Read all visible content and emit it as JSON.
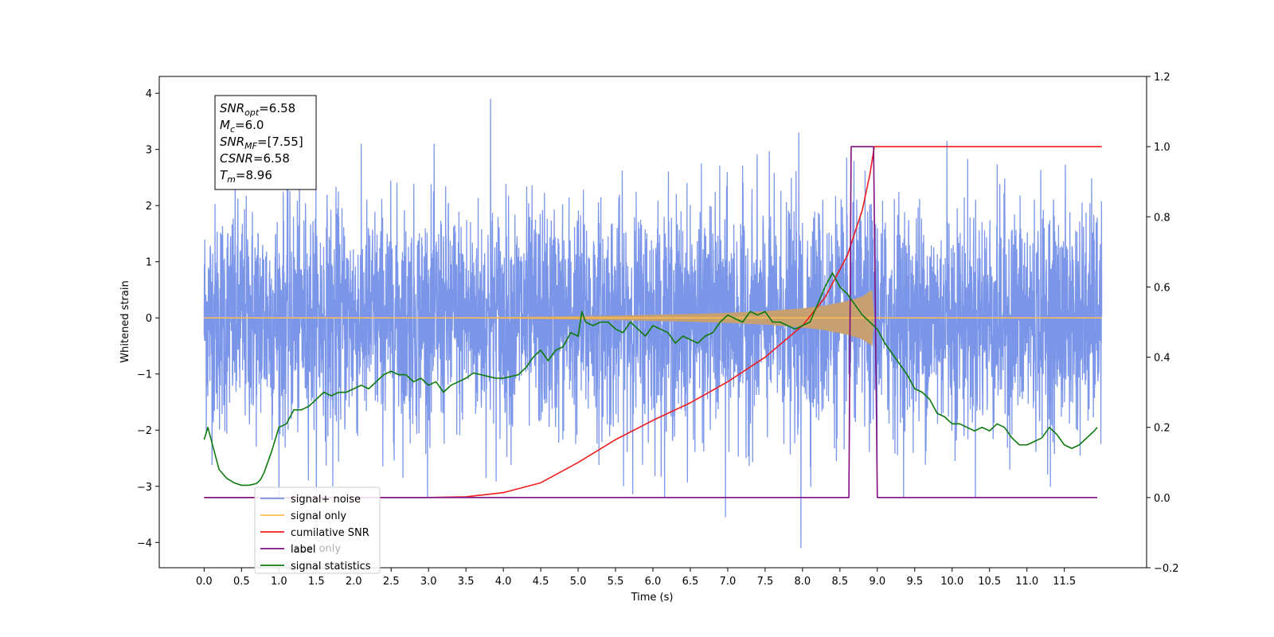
{
  "chart_data": {
    "type": "line",
    "xlabel": "Time (s)",
    "ylabel": "Whitened strain",
    "xlim": [
      -0.6,
      12.6
    ],
    "ylim": [
      -4.45,
      4.3
    ],
    "y2lim": [
      -0.2,
      1.2
    ],
    "x_ticks": [
      0.0,
      0.5,
      1.0,
      1.5,
      2.0,
      2.5,
      3.0,
      3.5,
      4.0,
      4.5,
      5.0,
      5.5,
      6.0,
      6.5,
      7.0,
      7.5,
      8.0,
      8.5,
      9.0,
      9.5,
      10.0,
      10.5,
      11.0,
      11.5
    ],
    "x_tick_labels": [
      "0.0",
      "0.5",
      "1.0",
      "1.5",
      "2.0",
      "2.5",
      "3.0",
      "3.5",
      "4.0",
      "4.5",
      "5.0",
      "5.5",
      "6.0",
      "6.5",
      "7.0",
      "7.5",
      "8.0",
      "8.5",
      "9.0",
      "9.5",
      "10.0",
      "10.5",
      "11.0",
      "11.5"
    ],
    "y_ticks": [
      -4,
      -3,
      -2,
      -1,
      0,
      1,
      2,
      3,
      4
    ],
    "y_tick_labels": [
      "−4",
      "−3",
      "−2",
      "−1",
      "0",
      "1",
      "2",
      "3",
      "4"
    ],
    "y2_ticks": [
      -0.2,
      0.0,
      0.2,
      0.4,
      0.6,
      0.8,
      1.0,
      1.2
    ],
    "y2_tick_labels": [
      "−0.2",
      "0.0",
      "0.2",
      "0.4",
      "0.6",
      "0.8",
      "1.0",
      "1.2"
    ],
    "grid": false,
    "legend_position": "lower-left",
    "noise": {
      "t_start": 0.0,
      "t_end": 12.0,
      "amplitude_std": 1.0,
      "max_peak": 3.9,
      "min_peak": -4.1,
      "notable_peaks": [
        {
          "x": 3.83,
          "y": 3.9
        },
        {
          "x": 7.95,
          "y": 3.3
        },
        {
          "x": 9.93,
          "y": 3.15
        },
        {
          "x": 7.95,
          "y": -4.05
        },
        {
          "x": 7.98,
          "y": -4.1
        },
        {
          "x": 6.97,
          "y": -3.55
        },
        {
          "x": 1.72,
          "y": -3.0
        }
      ]
    },
    "signal_envelope": {
      "x": [
        0.0,
        2.0,
        3.5,
        4.5,
        5.5,
        6.5,
        7.0,
        7.5,
        8.0,
        8.3,
        8.6,
        8.8,
        8.93,
        8.96
      ],
      "amplitude": [
        0.0,
        0.005,
        0.01,
        0.02,
        0.04,
        0.07,
        0.09,
        0.12,
        0.17,
        0.22,
        0.3,
        0.38,
        0.5,
        0.0
      ]
    },
    "series": [
      {
        "name": "signal+ noise",
        "axis": "left",
        "color": "#7b96e8"
      },
      {
        "name": "signal only",
        "axis": "left",
        "color": "#ffbe50",
        "x": [
          0.0,
          12.0
        ],
        "y": [
          0.0,
          0.0
        ]
      },
      {
        "name": "cumilative SNR",
        "axis": "right",
        "color": "#ee1c1c",
        "x": [
          0.0,
          3.0,
          3.5,
          4.0,
          4.5,
          5.0,
          5.5,
          6.0,
          6.5,
          7.0,
          7.5,
          8.0,
          8.3,
          8.6,
          8.8,
          8.9,
          8.96,
          9.0,
          12.0
        ],
        "y": [
          0.0,
          0.0,
          0.002,
          0.014,
          0.042,
          0.1,
          0.165,
          0.22,
          0.27,
          0.33,
          0.4,
          0.49,
          0.57,
          0.69,
          0.82,
          0.92,
          1.0,
          1.0,
          1.0
        ]
      },
      {
        "name": "label",
        "axis": "right",
        "color": "#7d0e7d",
        "x": [
          0.0,
          8.62,
          8.65,
          8.95,
          9.0,
          11.94
        ],
        "y": [
          0.0,
          0.0,
          1.0,
          1.0,
          0.0,
          0.0
        ]
      },
      {
        "name": "signal statistics",
        "axis": "right",
        "color": "#0d7a0d",
        "x": [
          0.0,
          0.05,
          0.15,
          0.2,
          0.3,
          0.4,
          0.5,
          0.6,
          0.7,
          0.75,
          0.8,
          0.9,
          1.0,
          1.1,
          1.2,
          1.3,
          1.4,
          1.5,
          1.6,
          1.7,
          1.8,
          1.9,
          2.0,
          2.1,
          2.2,
          2.3,
          2.4,
          2.5,
          2.6,
          2.7,
          2.8,
          2.9,
          3.0,
          3.1,
          3.2,
          3.3,
          3.4,
          3.5,
          3.6,
          3.7,
          3.8,
          3.9,
          4.0,
          4.1,
          4.2,
          4.3,
          4.4,
          4.5,
          4.6,
          4.7,
          4.8,
          4.9,
          5.0,
          5.05,
          5.1,
          5.2,
          5.3,
          5.4,
          5.5,
          5.6,
          5.7,
          5.8,
          5.9,
          6.0,
          6.1,
          6.2,
          6.3,
          6.4,
          6.5,
          6.6,
          6.7,
          6.8,
          6.9,
          7.0,
          7.1,
          7.2,
          7.3,
          7.4,
          7.5,
          7.6,
          7.7,
          7.8,
          7.9,
          8.0,
          8.1,
          8.2,
          8.3,
          8.4,
          8.5,
          8.6,
          8.7,
          8.8,
          8.9,
          9.0,
          9.1,
          9.2,
          9.3,
          9.4,
          9.5,
          9.6,
          9.7,
          9.8,
          9.9,
          10.0,
          10.1,
          10.2,
          10.3,
          10.4,
          10.5,
          10.6,
          10.7,
          10.8,
          10.9,
          11.0,
          11.1,
          11.2,
          11.3,
          11.4,
          11.5,
          11.6,
          11.7,
          11.8,
          11.9,
          11.94
        ],
        "y": [
          0.165,
          0.2,
          0.12,
          0.08,
          0.055,
          0.042,
          0.035,
          0.035,
          0.04,
          0.05,
          0.07,
          0.13,
          0.2,
          0.21,
          0.25,
          0.25,
          0.26,
          0.28,
          0.3,
          0.29,
          0.3,
          0.3,
          0.31,
          0.32,
          0.31,
          0.33,
          0.35,
          0.36,
          0.35,
          0.35,
          0.33,
          0.34,
          0.32,
          0.33,
          0.3,
          0.32,
          0.33,
          0.34,
          0.355,
          0.35,
          0.345,
          0.34,
          0.34,
          0.345,
          0.35,
          0.37,
          0.4,
          0.42,
          0.39,
          0.42,
          0.43,
          0.47,
          0.46,
          0.53,
          0.5,
          0.49,
          0.5,
          0.5,
          0.48,
          0.47,
          0.5,
          0.48,
          0.46,
          0.49,
          0.48,
          0.47,
          0.44,
          0.46,
          0.45,
          0.44,
          0.46,
          0.47,
          0.5,
          0.52,
          0.51,
          0.5,
          0.53,
          0.52,
          0.53,
          0.5,
          0.5,
          0.49,
          0.48,
          0.49,
          0.5,
          0.55,
          0.6,
          0.64,
          0.6,
          0.58,
          0.55,
          0.52,
          0.5,
          0.48,
          0.44,
          0.41,
          0.38,
          0.35,
          0.31,
          0.3,
          0.28,
          0.24,
          0.23,
          0.21,
          0.21,
          0.2,
          0.19,
          0.2,
          0.19,
          0.21,
          0.2,
          0.17,
          0.15,
          0.15,
          0.16,
          0.17,
          0.2,
          0.18,
          0.15,
          0.14,
          0.15,
          0.17,
          0.19,
          0.2
        ]
      }
    ],
    "legend_entries": [
      {
        "label": "signal+ noise",
        "color": "#7b96e8"
      },
      {
        "label": "signal only",
        "color": "#ffbe50"
      },
      {
        "label": "cumilative SNR",
        "color": "#ee1c1c"
      },
      {
        "label": "label",
        "color": "#7d0e7d"
      },
      {
        "label": "signal statistics",
        "color": "#0d7a0d"
      }
    ],
    "legend_ghost_text": "label only",
    "annotation": {
      "lines": [
        {
          "main": "SNR",
          "sub": "opt",
          "value": "=6.58"
        },
        {
          "main": "M",
          "sub": "c",
          "value": "=6.0"
        },
        {
          "main": "SNR",
          "sub": "MF",
          "value": "=[7.55]"
        },
        {
          "main": "CSNR",
          "sub": "",
          "value": "=6.58"
        },
        {
          "main": "T",
          "sub": "m",
          "value": "=8.96"
        }
      ]
    }
  }
}
